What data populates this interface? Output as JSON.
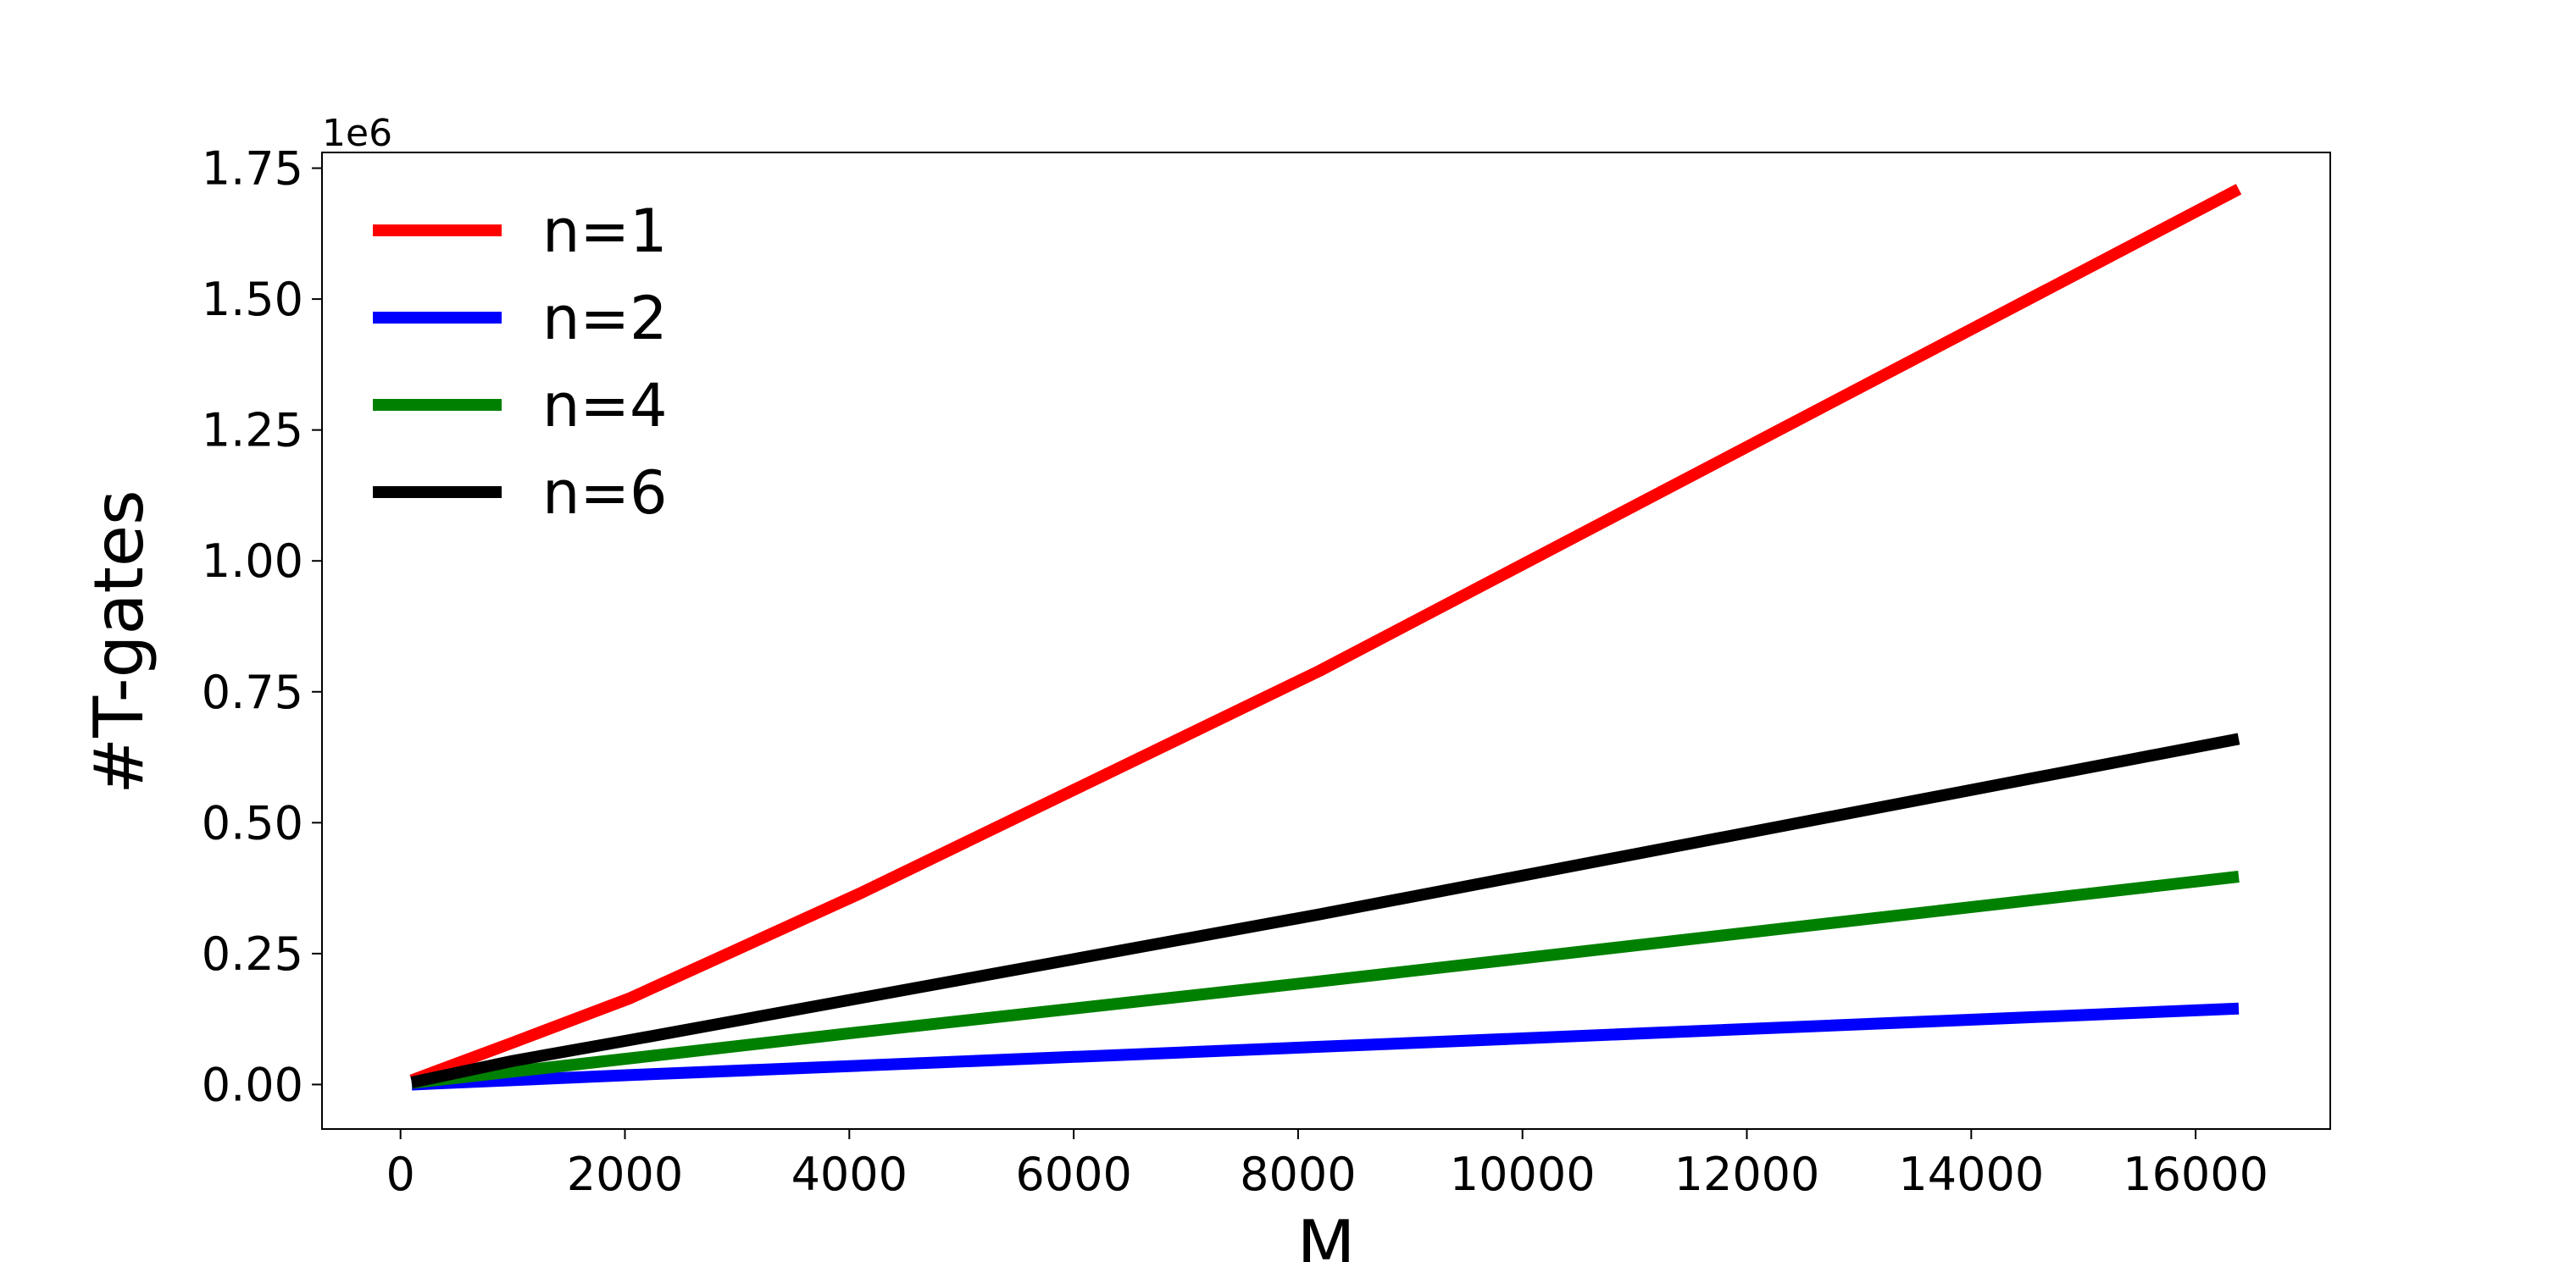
{
  "chart_data": {
    "type": "line",
    "xlabel": "M",
    "ylabel": "#T-gates",
    "y_offset_text": "1e6",
    "xlim": [
      -700,
      17200
    ],
    "ylim": [
      -0.085,
      1.78
    ],
    "x_ticks": [
      0,
      2000,
      4000,
      6000,
      8000,
      10000,
      12000,
      14000,
      16000
    ],
    "x_tick_labels": [
      "0",
      "2000",
      "4000",
      "6000",
      "8000",
      "10000",
      "12000",
      "14000",
      "16000"
    ],
    "y_ticks": [
      0.0,
      0.25,
      0.5,
      0.75,
      1.0,
      1.25,
      1.5,
      1.75
    ],
    "y_tick_labels": [
      "0.00",
      "0.25",
      "0.50",
      "0.75",
      "1.00",
      "1.25",
      "1.50",
      "1.75"
    ],
    "grid": false,
    "legend_position": "top-left",
    "series": [
      {
        "name": "n=1",
        "color": "#ff0000",
        "x": [
          100,
          500,
          1000,
          2048,
          4096,
          8192,
          16384
        ],
        "y": [
          0.008,
          0.04,
          0.08,
          0.165,
          0.365,
          0.79,
          1.71
        ]
      },
      {
        "name": "n=2",
        "color": "#0000ff",
        "x": [
          100,
          2048,
          4096,
          8192,
          16384
        ],
        "y": [
          0.0,
          0.018,
          0.036,
          0.072,
          0.145
        ]
      },
      {
        "name": "n=4",
        "color": "#008000",
        "x": [
          100,
          2048,
          4096,
          8192,
          16384
        ],
        "y": [
          0.003,
          0.05,
          0.1,
          0.197,
          0.397
        ]
      },
      {
        "name": "n=6",
        "color": "#000000",
        "x": [
          100,
          1000,
          2048,
          4096,
          8192,
          16384
        ],
        "y": [
          0.004,
          0.045,
          0.085,
          0.165,
          0.325,
          0.66
        ]
      }
    ]
  }
}
